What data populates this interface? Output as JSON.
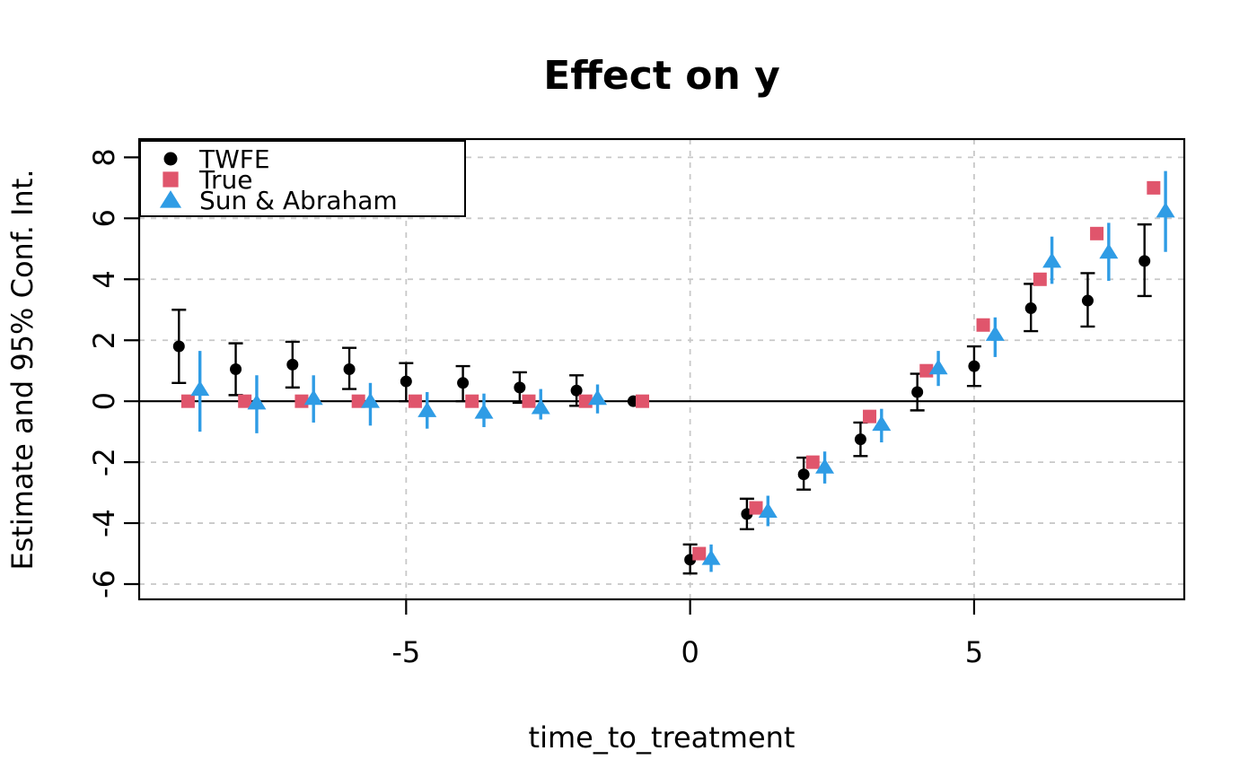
{
  "chart_data": {
    "type": "scatter",
    "title": "Effect on y",
    "xlabel": "time_to_treatment",
    "ylabel": "Estimate and 95% Conf. Int.",
    "xlim": [
      -9.7,
      8.7
    ],
    "ylim": [
      -6.5,
      8.6
    ],
    "xticks": [
      -5,
      0,
      5
    ],
    "yticks": [
      8,
      6,
      4,
      2,
      0,
      -2,
      -4,
      -6
    ],
    "grid": true,
    "grid_color": "#c8c8c8",
    "axis_color": "#000000",
    "zero_line": 0,
    "legend_position": "top-left",
    "series": [
      {
        "name": "TWFE",
        "marker": "circle",
        "color": "#000000",
        "x_offset": 0,
        "error_caps": true,
        "points": [
          {
            "t": -9,
            "est": 1.8,
            "lo": 0.6,
            "hi": 3.0
          },
          {
            "t": -8,
            "est": 1.05,
            "lo": 0.2,
            "hi": 1.9
          },
          {
            "t": -7,
            "est": 1.2,
            "lo": 0.45,
            "hi": 1.95
          },
          {
            "t": -6,
            "est": 1.05,
            "lo": 0.4,
            "hi": 1.75
          },
          {
            "t": -5,
            "est": 0.65,
            "lo": 0.0,
            "hi": 1.25
          },
          {
            "t": -4,
            "est": 0.6,
            "lo": 0.0,
            "hi": 1.15
          },
          {
            "t": -3,
            "est": 0.45,
            "lo": -0.05,
            "hi": 0.95
          },
          {
            "t": -2,
            "est": 0.35,
            "lo": -0.15,
            "hi": 0.85
          },
          {
            "t": -1,
            "est": 0.0,
            "lo": null,
            "hi": null
          },
          {
            "t": 0,
            "est": -5.2,
            "lo": -5.65,
            "hi": -4.7
          },
          {
            "t": 1,
            "est": -3.7,
            "lo": -4.2,
            "hi": -3.2
          },
          {
            "t": 2,
            "est": -2.4,
            "lo": -2.9,
            "hi": -1.85
          },
          {
            "t": 3,
            "est": -1.25,
            "lo": -1.8,
            "hi": -0.7
          },
          {
            "t": 4,
            "est": 0.3,
            "lo": -0.3,
            "hi": 0.9
          },
          {
            "t": 5,
            "est": 1.15,
            "lo": 0.5,
            "hi": 1.8
          },
          {
            "t": 6,
            "est": 3.05,
            "lo": 2.3,
            "hi": 3.85
          },
          {
            "t": 7,
            "est": 3.3,
            "lo": 2.45,
            "hi": 4.2
          },
          {
            "t": 8,
            "est": 4.6,
            "lo": 3.45,
            "hi": 5.8
          }
        ]
      },
      {
        "name": "True",
        "marker": "square",
        "color": "#e0556c",
        "x_offset": 0.16,
        "error_caps": false,
        "points": [
          {
            "t": -9,
            "est": 0
          },
          {
            "t": -8,
            "est": 0
          },
          {
            "t": -7,
            "est": 0
          },
          {
            "t": -6,
            "est": 0
          },
          {
            "t": -5,
            "est": 0
          },
          {
            "t": -4,
            "est": 0
          },
          {
            "t": -3,
            "est": 0
          },
          {
            "t": -2,
            "est": 0
          },
          {
            "t": -1,
            "est": 0
          },
          {
            "t": 0,
            "est": -5
          },
          {
            "t": 1,
            "est": -3.5
          },
          {
            "t": 2,
            "est": -2
          },
          {
            "t": 3,
            "est": -0.5
          },
          {
            "t": 4,
            "est": 1
          },
          {
            "t": 5,
            "est": 2.5
          },
          {
            "t": 6,
            "est": 4
          },
          {
            "t": 7,
            "est": 5.5
          },
          {
            "t": 8,
            "est": 7
          }
        ]
      },
      {
        "name": "Sun & Abraham",
        "marker": "triangle",
        "color": "#2f9ce5",
        "x_offset": 0.37,
        "error_caps": false,
        "points": [
          {
            "t": -9,
            "est": 0.4,
            "lo": -1.0,
            "hi": 1.65
          },
          {
            "t": -8,
            "est": -0.05,
            "lo": -1.05,
            "hi": 0.85
          },
          {
            "t": -7,
            "est": 0.1,
            "lo": -0.7,
            "hi": 0.85
          },
          {
            "t": -6,
            "est": 0.0,
            "lo": -0.8,
            "hi": 0.6
          },
          {
            "t": -5,
            "est": -0.3,
            "lo": -0.9,
            "hi": 0.3
          },
          {
            "t": -4,
            "est": -0.35,
            "lo": -0.85,
            "hi": 0.25
          },
          {
            "t": -3,
            "est": -0.2,
            "lo": -0.6,
            "hi": 0.4
          },
          {
            "t": -2,
            "est": 0.1,
            "lo": -0.4,
            "hi": 0.55
          },
          {
            "t": 0,
            "est": -5.15,
            "lo": -5.6,
            "hi": -4.7
          },
          {
            "t": 1,
            "est": -3.6,
            "lo": -4.1,
            "hi": -3.1
          },
          {
            "t": 2,
            "est": -2.15,
            "lo": -2.7,
            "hi": -1.65
          },
          {
            "t": 3,
            "est": -0.75,
            "lo": -1.35,
            "hi": -0.25
          },
          {
            "t": 4,
            "est": 1.1,
            "lo": 0.5,
            "hi": 1.65
          },
          {
            "t": 5,
            "est": 2.2,
            "lo": 1.45,
            "hi": 2.75
          },
          {
            "t": 6,
            "est": 4.6,
            "lo": 3.85,
            "hi": 5.4
          },
          {
            "t": 7,
            "est": 4.9,
            "lo": 3.95,
            "hi": 5.85
          },
          {
            "t": 8,
            "est": 6.25,
            "lo": 4.9,
            "hi": 7.55
          }
        ]
      }
    ]
  }
}
